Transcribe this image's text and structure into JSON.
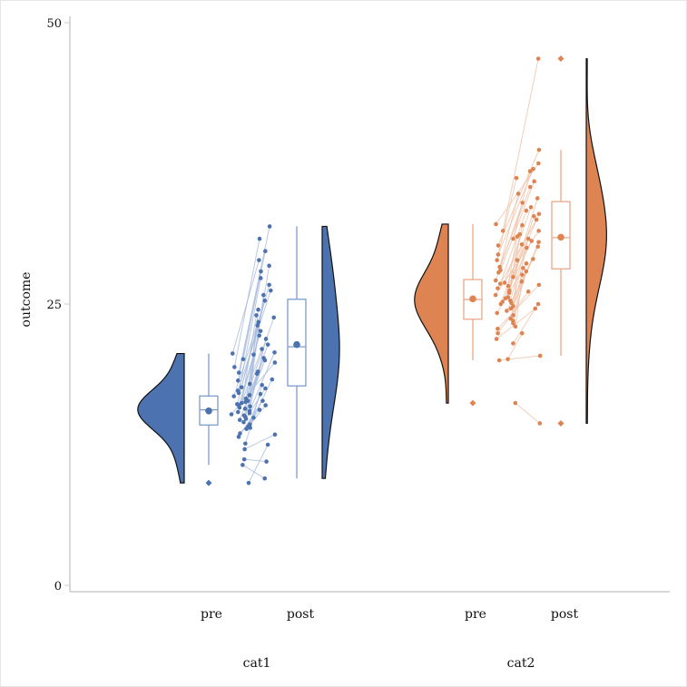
{
  "chart_data": {
    "type": "raincloud",
    "title": "",
    "xlabel": "",
    "ylabel": "outcome",
    "ylim": [
      0,
      50
    ],
    "yticks": [
      0,
      25,
      50
    ],
    "grid": false,
    "legend": "none",
    "time_labels": [
      "pre",
      "post"
    ],
    "groups": [
      {
        "name": "cat1",
        "color": "#4c72b0",
        "box_color": "#7f9ccc",
        "line_color": "#a8bbdd",
        "pre": [
          15.2,
          16.1,
          14.8,
          17.3,
          13.9,
          15.7,
          16.4,
          18.9,
          12.6,
          15.0,
          14.3,
          16.8,
          17.9,
          11.2,
          15.5,
          16.0,
          14.1,
          19.4,
          13.5,
          15.9,
          16.6,
          20.6,
          10.7,
          14.7,
          15.3,
          17.1,
          12.1,
          16.2,
          15.8,
          13.2,
          18.2,
          14.5,
          16.9,
          9.1,
          15.1,
          17.6,
          14.0,
          16.3,
          20.1,
          15.4
        ],
        "post": [
          19.8,
          23.1,
          17.5,
          26.2,
          16.0,
          21.4,
          24.5,
          31.9,
          14.9,
          20.2,
          18.3,
          25.3,
          28.4,
          11.0,
          20.7,
          22.6,
          17.0,
          30.8,
          15.6,
          21.9,
          23.8,
          28.9,
          9.5,
          18.8,
          20.5,
          27.3,
          13.4,
          24.0,
          22.2,
          16.4,
          29.7,
          19.0,
          25.8,
          12.5,
          20.0,
          26.7,
          17.8,
          23.4,
          27.9,
          21.0
        ]
      },
      {
        "name": "cat2",
        "color": "#dd8452",
        "box_color": "#eaa989",
        "line_color": "#f0c2a8",
        "pre": [
          25.1,
          26.4,
          24.2,
          27.8,
          23.0,
          25.6,
          26.9,
          30.2,
          21.5,
          24.8,
          23.7,
          27.1,
          28.9,
          20.1,
          25.3,
          26.0,
          23.3,
          31.5,
          22.4,
          25.8,
          26.6,
          32.1,
          20.0,
          24.4,
          25.0,
          28.3,
          21.9,
          26.2,
          25.5,
          22.8,
          29.4,
          24.0,
          27.4,
          16.2,
          24.6,
          28.0,
          23.5,
          26.8,
          30.8,
          25.2
        ],
        "post": [
          30.1,
          32.5,
          28.6,
          34.8,
          27.0,
          31.2,
          33.6,
          38.7,
          25.0,
          30.5,
          28.2,
          34.0,
          36.2,
          22.4,
          30.8,
          32.0,
          27.6,
          46.8,
          26.1,
          31.5,
          33.0,
          37.5,
          20.4,
          29.0,
          30.3,
          35.4,
          24.6,
          32.8,
          31.0,
          26.7,
          37.0,
          28.9,
          34.4,
          14.4,
          30.0,
          35.9,
          27.9,
          33.3,
          36.8,
          30.6
        ]
      }
    ]
  }
}
